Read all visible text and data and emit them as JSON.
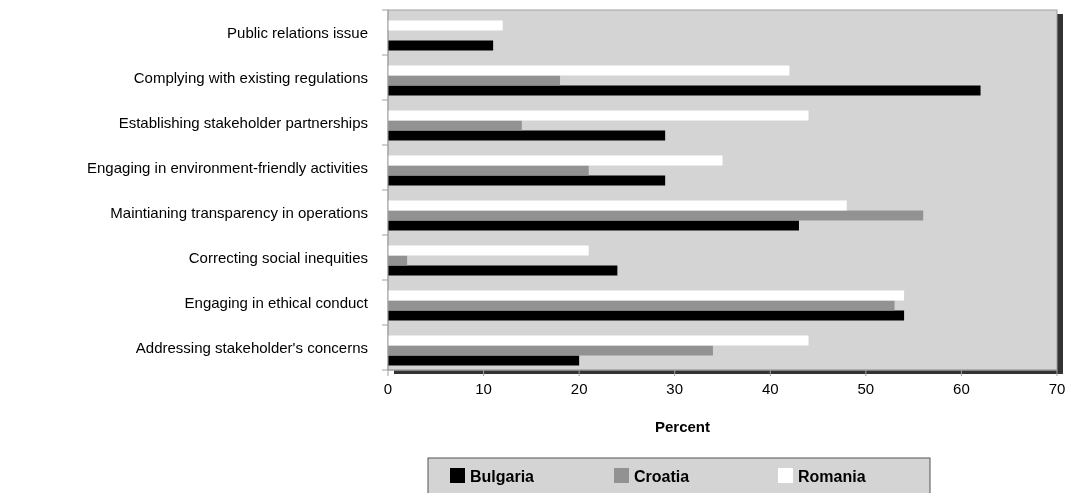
{
  "chart_data": {
    "type": "bar",
    "orientation": "horizontal",
    "xlabel": "Percent",
    "categories": [
      "Public relations issue",
      "Complying with existing regulations",
      "Establishing stakeholder partnerships",
      "Engaging in environment-friendly activities",
      "Maintianing transparency in operations",
      "Correcting social inequities",
      "Engaging in ethical conduct",
      "Addressing stakeholder's concerns"
    ],
    "series": [
      {
        "name": "Bulgaria",
        "color": "#000000",
        "values": [
          11,
          62,
          29,
          29,
          43,
          24,
          54,
          20
        ]
      },
      {
        "name": "Croatia",
        "color": "#929292",
        "values": [
          null,
          18,
          14,
          21,
          56,
          2,
          53,
          34
        ]
      },
      {
        "name": "Romania",
        "color": "#ffffff",
        "values": [
          12,
          42,
          44,
          35,
          48,
          21,
          54,
          44
        ]
      }
    ],
    "xlim": [
      0,
      70
    ],
    "xticks": [
      0,
      10,
      20,
      30,
      40,
      50,
      60,
      70
    ],
    "grid": false,
    "legend": "bottom"
  }
}
